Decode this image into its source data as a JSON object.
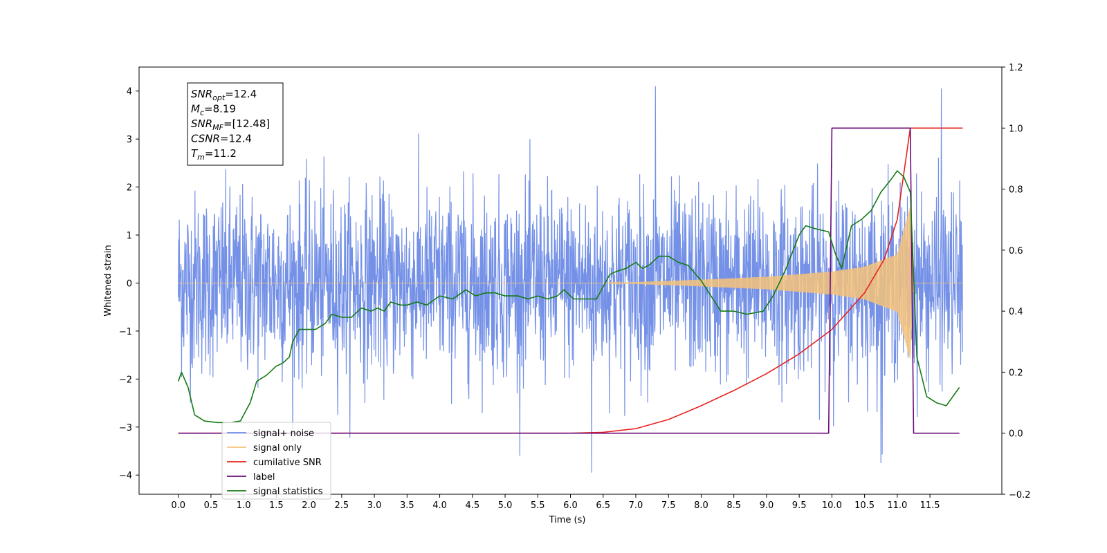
{
  "chart_data": {
    "type": "line",
    "xlabel": "Time (s)",
    "ylabel": "Whitened strain",
    "xlim": [
      -0.6,
      12.6
    ],
    "ylim": [
      -4.4,
      4.5
    ],
    "ylim_right": [
      -0.2,
      1.2
    ],
    "x_ticks": [
      "0.0",
      "0.5",
      "1.0",
      "1.5",
      "2.0",
      "2.5",
      "3.0",
      "3.5",
      "4.0",
      "4.5",
      "5.0",
      "5.5",
      "6.0",
      "6.5",
      "7.0",
      "7.5",
      "8.0",
      "8.5",
      "9.0",
      "9.5",
      "10.0",
      "10.5",
      "11.0",
      "11.5"
    ],
    "y_ticks_left": [
      "4",
      "3",
      "2",
      "1",
      "0",
      "−1",
      "−2",
      "−3",
      "−4"
    ],
    "y_ticks_right": [
      "1.2",
      "1.0",
      "0.8",
      "0.6",
      "0.4",
      "0.2",
      "0.0",
      "−0.2"
    ],
    "grid": false,
    "legend_position": "lower-left",
    "stats_box": [
      {
        "sym": "SNR",
        "sub": "opt",
        "value": "=12.4"
      },
      {
        "sym": "M",
        "sub": "c",
        "value": "=8.19"
      },
      {
        "sym": "SNR",
        "sub": "MF",
        "value": "=[12.48]"
      },
      {
        "sym": "CSNR",
        "sub": "",
        "value": "=12.4"
      },
      {
        "sym": "T",
        "sub": "m",
        "value": "=11.2"
      }
    ],
    "series": [
      {
        "name": "signal+ noise",
        "color": "#6d8be6",
        "axis": "left",
        "description_values": {
          "x_range": [
            0.0,
            12.0
          ],
          "amplitude_typical": 1.5,
          "extremes": [
            4.1,
            -3.95
          ]
        }
      },
      {
        "name": "signal only",
        "color": "#f6c27a",
        "axis": "left",
        "envelope": {
          "x": [
            0.0,
            6.5,
            7.0,
            8.0,
            9.0,
            10.0,
            10.5,
            11.0,
            11.2,
            11.25,
            12.0
          ],
          "amp": [
            0.0,
            0.0,
            0.02,
            0.07,
            0.13,
            0.24,
            0.34,
            0.6,
            1.6,
            0.0,
            0.0
          ]
        }
      },
      {
        "name": "cumilative SNR",
        "color": "#e8211d",
        "axis": "right",
        "x": [
          0.0,
          6.0,
          6.5,
          7.0,
          7.5,
          8.0,
          8.5,
          9.0,
          9.5,
          10.0,
          10.5,
          10.8,
          11.0,
          11.2,
          12.0
        ],
        "y": [
          0.0,
          0.0,
          0.003,
          0.015,
          0.045,
          0.09,
          0.14,
          0.195,
          0.26,
          0.34,
          0.46,
          0.57,
          0.7,
          1.0,
          1.0
        ]
      },
      {
        "name": "label",
        "color": "#6a0a7a",
        "axis": "right",
        "x": [
          0.0,
          9.95,
          10.0,
          11.2,
          11.25,
          11.95
        ],
        "y": [
          0.0,
          0.0,
          1.0,
          1.0,
          0.0,
          0.0
        ]
      },
      {
        "name": "signal statistics",
        "color": "#157a15",
        "axis": "right",
        "x": [
          0.0,
          0.05,
          0.15,
          0.25,
          0.4,
          0.6,
          0.8,
          0.95,
          1.1,
          1.2,
          1.35,
          1.5,
          1.6,
          1.7,
          1.75,
          1.85,
          2.0,
          2.1,
          2.25,
          2.35,
          2.5,
          2.65,
          2.8,
          2.95,
          3.05,
          3.15,
          3.25,
          3.4,
          3.5,
          3.65,
          3.8,
          4.0,
          4.2,
          4.4,
          4.55,
          4.7,
          4.85,
          5.0,
          5.2,
          5.35,
          5.5,
          5.65,
          5.8,
          5.9,
          6.05,
          6.2,
          6.4,
          6.6,
          6.7,
          6.85,
          7.0,
          7.1,
          7.2,
          7.35,
          7.5,
          7.65,
          7.8,
          8.0,
          8.15,
          8.3,
          8.5,
          8.7,
          8.95,
          9.1,
          9.3,
          9.5,
          9.6,
          9.75,
          9.95,
          10.05,
          10.15,
          10.3,
          10.45,
          10.6,
          10.75,
          10.9,
          11.0,
          11.1,
          11.2,
          11.3,
          11.45,
          11.6,
          11.75,
          11.95
        ],
        "y": [
          0.17,
          0.2,
          0.15,
          0.06,
          0.04,
          0.035,
          0.035,
          0.04,
          0.1,
          0.17,
          0.19,
          0.22,
          0.23,
          0.25,
          0.3,
          0.34,
          0.34,
          0.34,
          0.36,
          0.39,
          0.38,
          0.38,
          0.41,
          0.4,
          0.41,
          0.4,
          0.43,
          0.42,
          0.42,
          0.43,
          0.42,
          0.45,
          0.44,
          0.47,
          0.45,
          0.46,
          0.46,
          0.45,
          0.45,
          0.44,
          0.45,
          0.44,
          0.45,
          0.47,
          0.44,
          0.44,
          0.44,
          0.52,
          0.53,
          0.54,
          0.56,
          0.54,
          0.55,
          0.58,
          0.58,
          0.56,
          0.55,
          0.5,
          0.45,
          0.4,
          0.4,
          0.39,
          0.4,
          0.45,
          0.54,
          0.65,
          0.68,
          0.67,
          0.66,
          0.59,
          0.54,
          0.68,
          0.7,
          0.73,
          0.79,
          0.83,
          0.86,
          0.84,
          0.79,
          0.25,
          0.12,
          0.1,
          0.09,
          0.15
        ]
      }
    ]
  }
}
